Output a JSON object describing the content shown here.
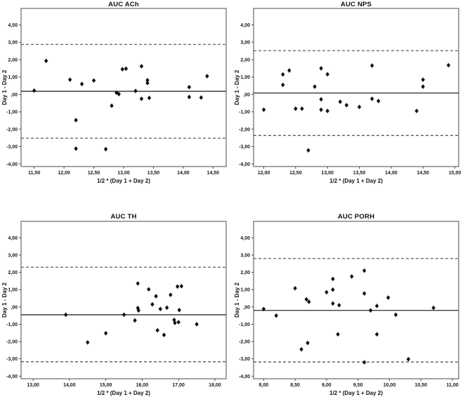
{
  "page": {
    "background": "#ffffff"
  },
  "styles": {
    "marker_color": "#0d0d0d",
    "mean_line_color": "#2b2b2b",
    "limit_line_color": "#1a1a1a",
    "frame_color": "#4a4a4a",
    "text_color": "#111111"
  },
  "number_format": {
    "decimals": 2,
    "decimal_separator": ",",
    "strip_leading_zero": true
  },
  "chart_data": [
    {
      "type": "scatter",
      "title": "AUC ACh",
      "xlabel": "1/2 * (Day 1 + Day 2)",
      "ylabel": "Day 1 - Day 2",
      "xlim": [
        11.28,
        14.72
      ],
      "ylim": [
        -4.15,
        4.95
      ],
      "xticks": [
        11.5,
        12.0,
        12.5,
        13.0,
        13.5,
        14.0,
        14.5
      ],
      "yticks": [
        4,
        3,
        2,
        1,
        0,
        -1,
        -2,
        -3,
        -4
      ],
      "grid": false,
      "legend": null,
      "mean_line": 0.18,
      "upper_limit": 2.88,
      "lower_limit": -2.52,
      "points": [
        [
          11.5,
          0.22
        ],
        [
          11.7,
          1.93
        ],
        [
          12.1,
          0.85
        ],
        [
          12.2,
          -1.48
        ],
        [
          12.2,
          -3.12
        ],
        [
          12.3,
          0.6
        ],
        [
          12.5,
          0.8
        ],
        [
          12.7,
          -3.15
        ],
        [
          12.8,
          -0.65
        ],
        [
          12.88,
          0.1
        ],
        [
          12.92,
          0.02
        ],
        [
          12.98,
          1.45
        ],
        [
          13.04,
          1.48
        ],
        [
          13.2,
          0.2
        ],
        [
          13.3,
          1.62
        ],
        [
          13.3,
          -0.25
        ],
        [
          13.4,
          0.82
        ],
        [
          13.4,
          0.66
        ],
        [
          13.43,
          -0.2
        ],
        [
          14.1,
          0.42
        ],
        [
          14.1,
          -0.15
        ],
        [
          14.3,
          -0.18
        ],
        [
          14.4,
          1.05
        ]
      ]
    },
    {
      "type": "scatter",
      "title": "AUC NPS",
      "xlabel": "1/2 * (Day 1 + Day 2)",
      "ylabel": "Day 1 - Day 2",
      "xlim": [
        11.84,
        15.06
      ],
      "ylim": [
        -4.15,
        4.95
      ],
      "xticks": [
        12.0,
        12.5,
        13.0,
        13.5,
        14.0,
        14.5,
        15.0
      ],
      "yticks": [
        4,
        3,
        2,
        1,
        0,
        -1,
        -2,
        -3,
        -4
      ],
      "grid": false,
      "legend": null,
      "mean_line": 0.08,
      "upper_limit": 2.52,
      "lower_limit": -2.36,
      "points": [
        [
          12.0,
          -0.88
        ],
        [
          12.3,
          1.15
        ],
        [
          12.3,
          0.55
        ],
        [
          12.4,
          1.38
        ],
        [
          12.5,
          -0.82
        ],
        [
          12.6,
          -0.82
        ],
        [
          12.7,
          -3.22
        ],
        [
          12.8,
          0.45
        ],
        [
          12.9,
          1.5
        ],
        [
          12.9,
          -0.28
        ],
        [
          12.9,
          -0.88
        ],
        [
          13.0,
          1.16
        ],
        [
          13.0,
          -0.95
        ],
        [
          13.2,
          -0.42
        ],
        [
          13.3,
          -0.62
        ],
        [
          13.5,
          -0.72
        ],
        [
          13.7,
          1.66
        ],
        [
          13.7,
          -0.25
        ],
        [
          13.8,
          -0.38
        ],
        [
          14.4,
          -0.95
        ],
        [
          14.5,
          0.85
        ],
        [
          14.5,
          0.45
        ],
        [
          14.9,
          1.68
        ]
      ]
    },
    {
      "type": "scatter",
      "title": "AUC TH",
      "xlabel": "1/2 * (Day 1 + Day 2)",
      "ylabel": "Day 1 - Day 2",
      "xlim": [
        12.67,
        18.31
      ],
      "ylim": [
        -4.15,
        4.95
      ],
      "xticks": [
        13.0,
        14.0,
        15.0,
        16.0,
        17.0,
        18.0
      ],
      "yticks": [
        4,
        3,
        2,
        1,
        0,
        -1,
        -2,
        -3,
        -4
      ],
      "grid": false,
      "legend": null,
      "mean_line": -0.45,
      "upper_limit": 2.3,
      "lower_limit": -3.17,
      "points": [
        [
          13.9,
          -0.45
        ],
        [
          14.5,
          -2.05
        ],
        [
          15.0,
          -1.52
        ],
        [
          15.5,
          -0.45
        ],
        [
          15.8,
          -0.78
        ],
        [
          15.88,
          1.36
        ],
        [
          15.88,
          -0.06
        ],
        [
          15.9,
          -0.2
        ],
        [
          16.18,
          1.02
        ],
        [
          16.28,
          0.15
        ],
        [
          16.38,
          0.62
        ],
        [
          16.42,
          -1.35
        ],
        [
          16.5,
          -0.12
        ],
        [
          16.6,
          -1.62
        ],
        [
          16.68,
          -0.04
        ],
        [
          16.78,
          0.7
        ],
        [
          16.88,
          -0.75
        ],
        [
          16.9,
          -0.92
        ],
        [
          16.97,
          1.18
        ],
        [
          17.0,
          -0.88
        ],
        [
          17.02,
          -0.18
        ],
        [
          17.08,
          1.2
        ],
        [
          17.5,
          -1.0
        ]
      ]
    },
    {
      "type": "scatter",
      "title": "AUC PORH",
      "xlabel": "1/2 * (Day 1 + Day 2)",
      "ylabel": "Day 1 - Day 2",
      "xlim": [
        7.84,
        11.1
      ],
      "ylim": [
        -4.15,
        4.95
      ],
      "xticks": [
        8.0,
        8.5,
        9.0,
        9.5,
        10.0,
        10.5,
        11.0
      ],
      "yticks": [
        4,
        3,
        2,
        1,
        0,
        -1,
        -2,
        -3,
        -4
      ],
      "grid": false,
      "legend": null,
      "mean_line": -0.2,
      "upper_limit": 2.8,
      "lower_limit": -3.18,
      "points": [
        [
          8.0,
          -0.12
        ],
        [
          8.2,
          -0.5
        ],
        [
          8.5,
          1.08
        ],
        [
          8.6,
          -2.45
        ],
        [
          8.68,
          0.44
        ],
        [
          8.72,
          0.3
        ],
        [
          8.7,
          -2.08
        ],
        [
          9.0,
          0.85
        ],
        [
          9.1,
          1.62
        ],
        [
          9.1,
          1.0
        ],
        [
          9.1,
          0.2
        ],
        [
          9.2,
          0.1
        ],
        [
          9.18,
          -1.58
        ],
        [
          9.4,
          1.76
        ],
        [
          9.6,
          2.1
        ],
        [
          9.6,
          0.78
        ],
        [
          9.6,
          -3.2
        ],
        [
          9.7,
          -0.2
        ],
        [
          9.8,
          0.06
        ],
        [
          9.8,
          -1.58
        ],
        [
          9.98,
          0.54
        ],
        [
          10.1,
          -0.45
        ],
        [
          10.3,
          -3.02
        ],
        [
          10.7,
          -0.05
        ]
      ]
    }
  ]
}
